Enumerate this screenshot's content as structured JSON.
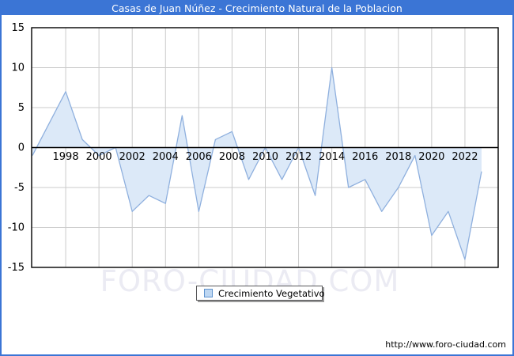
{
  "window": {
    "title": "Casas de Juan Núñez - Crecimiento Natural de la Poblacion",
    "accent_color": "#3B75D5"
  },
  "chart_data": {
    "type": "area",
    "title": "Casas de Juan Núñez - Crecimiento Natural de la Poblacion",
    "series": [
      {
        "name": "Crecimiento Vegetativo",
        "x": [
          1996,
          1997,
          1998,
          1999,
          2000,
          2001,
          2002,
          2003,
          2004,
          2005,
          2006,
          2007,
          2008,
          2009,
          2010,
          2011,
          2012,
          2013,
          2014,
          2015,
          2016,
          2017,
          2018,
          2019,
          2020,
          2021,
          2022,
          2023
        ],
        "values": [
          -1,
          3,
          7,
          1,
          -1,
          0,
          -8,
          -6,
          -7,
          4,
          -8,
          1,
          2,
          -4,
          0,
          -4,
          0,
          -6,
          10,
          -5,
          -4,
          -8,
          -5,
          -1,
          -11,
          -8,
          -14,
          -3
        ]
      }
    ],
    "xlabel": "",
    "ylabel": "",
    "xlim": [
      1996,
      2024
    ],
    "ylim": [
      -15,
      15
    ],
    "xticks": [
      1998,
      2000,
      2002,
      2004,
      2006,
      2008,
      2010,
      2012,
      2014,
      2016,
      2018,
      2020,
      2022
    ],
    "yticks": [
      15,
      10,
      5,
      0,
      -5,
      -10,
      -15
    ],
    "grid": true,
    "legend_position": "bottom-center",
    "colors": {
      "area_fill": "#DCE9F8",
      "line": "#8FB0DE",
      "gridline": "#CBCBCB",
      "axis": "#000000",
      "tick_label": "#000000"
    }
  },
  "legend": {
    "label": "Crecimiento Vegetativo",
    "marker_fill": "#BED7F2",
    "marker_border": "#5E92CE"
  },
  "watermark": {
    "text": "FORO-CIUDAD.COM",
    "color": "#EBEBF3"
  },
  "footer": {
    "url": "http://www.foro-ciudad.com"
  }
}
